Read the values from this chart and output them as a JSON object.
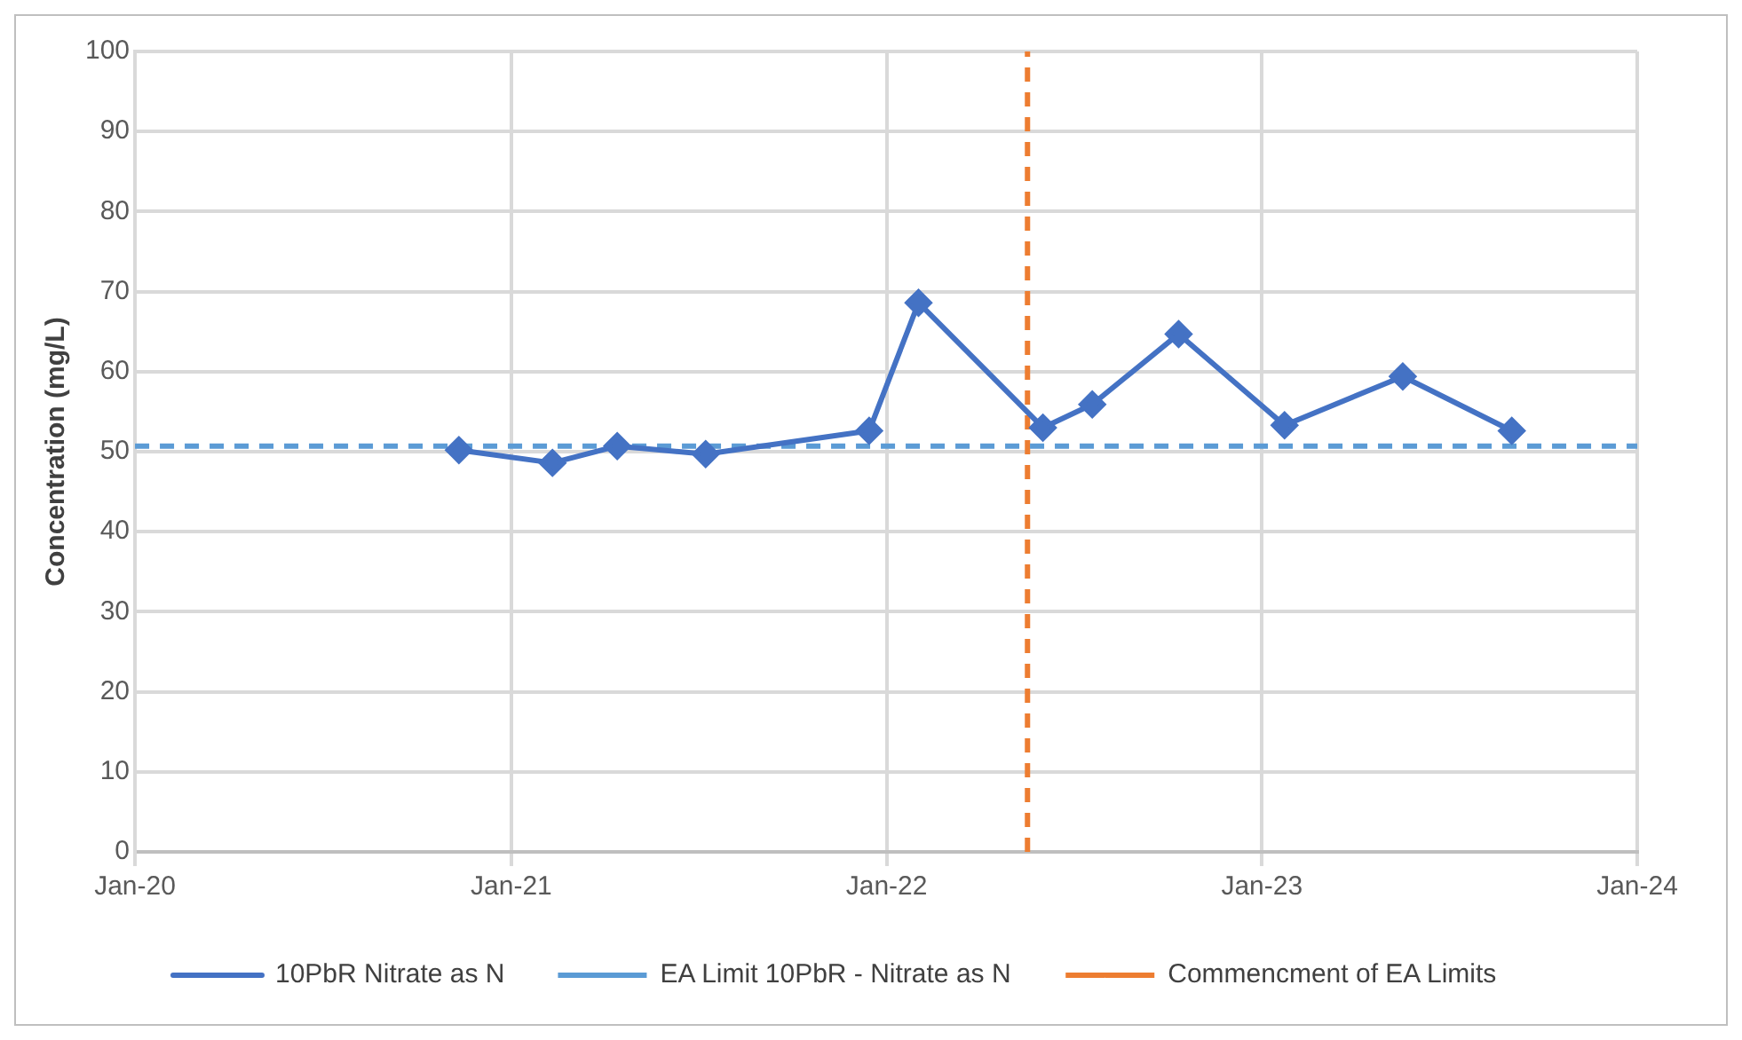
{
  "chart_data": {
    "type": "line",
    "ylabel": "Concentration (mg/L)",
    "x": [
      "2020-11-11",
      "2021-02-10",
      "2021-04-14",
      "2021-07-09",
      "2021-12-15",
      "2022-02-01",
      "2022-06-02",
      "2022-07-20",
      "2022-10-12",
      "2023-01-23",
      "2023-05-18",
      "2023-09-01"
    ],
    "series": [
      {
        "name": "10PbR Nitrate as N",
        "color": "#4472c4",
        "values": [
          50.2,
          48.6,
          50.7,
          49.7,
          52.6,
          68.6,
          53.0,
          55.9,
          64.7,
          53.3,
          59.4,
          52.6
        ]
      }
    ],
    "xlim": [
      "2020-01-01",
      "2024-01-01"
    ],
    "xticks": [
      {
        "value": "2020-01-01",
        "label": "Jan-20"
      },
      {
        "value": "2021-01-01",
        "label": "Jan-21"
      },
      {
        "value": "2022-01-01",
        "label": "Jan-22"
      },
      {
        "value": "2023-01-01",
        "label": "Jan-23"
      },
      {
        "value": "2024-01-01",
        "label": "Jan-24"
      }
    ],
    "ylim": [
      0,
      100
    ],
    "yticks": [
      0,
      10,
      20,
      30,
      40,
      50,
      60,
      70,
      80,
      90,
      100
    ],
    "ref_lines": [
      {
        "axis": "y",
        "value": 50.7,
        "label": "EA Limit 10PbR - Nitrate as N",
        "color": "#5b9bd5",
        "line_style": "dashed"
      },
      {
        "axis": "x",
        "value": "2022-05-18",
        "label": "Commencment of EA Limits",
        "color": "#ed7d31",
        "line_style": "dashed"
      }
    ],
    "grid": true,
    "legend": "bottom",
    "marker": "diamond",
    "line_style": "solid"
  }
}
